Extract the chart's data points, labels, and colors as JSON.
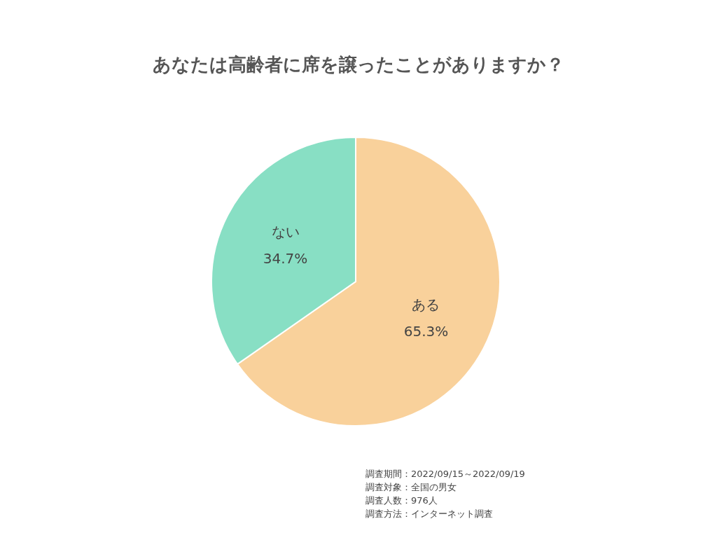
{
  "chart_data": {
    "type": "pie",
    "title": "あなたは高齢者に席を譲ったことがありますか？",
    "categories": [
      "ある",
      "ない"
    ],
    "values": [
      65.3,
      34.7
    ],
    "value_labels": [
      "65.3%",
      "34.7%"
    ],
    "colors": [
      "#f9d19b",
      "#88dfc4"
    ],
    "annotations": [
      "調査期間：2022/09/15～2022/09/19",
      "調査対象：全国の男女",
      "調査人数：976人",
      "調査方法：インターネット調査"
    ]
  }
}
